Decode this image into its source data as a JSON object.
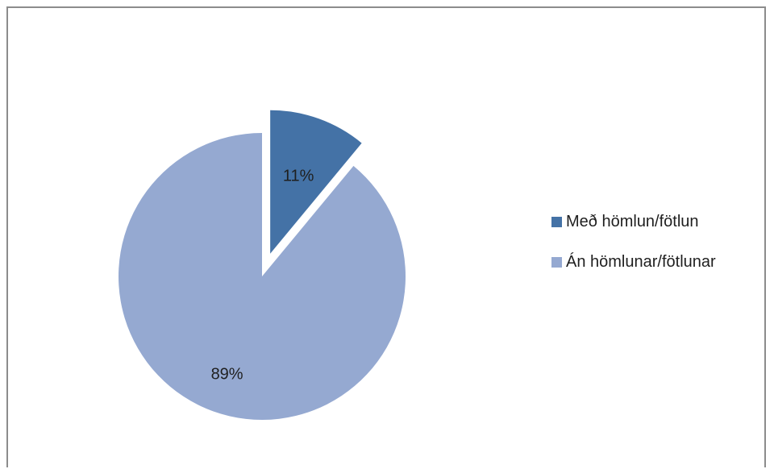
{
  "chart_data": {
    "type": "pie",
    "title": "",
    "slices": [
      {
        "name": "Með hömlun/fötlun",
        "value": 11,
        "label": "11%",
        "color": "#4472a6",
        "exploded": true
      },
      {
        "name": "Án hömlunar/fötlunar",
        "value": 89,
        "label": "89%",
        "color": "#95a9d1",
        "exploded": false
      }
    ],
    "start_angle_deg": 0,
    "direction": "clockwise",
    "legend_position": "right"
  }
}
